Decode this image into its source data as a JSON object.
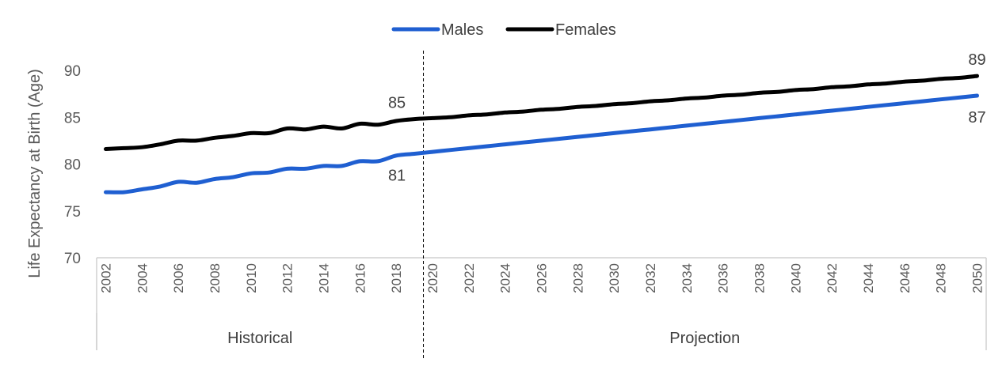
{
  "chart_data": {
    "type": "line",
    "ylabel": "Life Expectancy at Birth (Age)",
    "xlabel": "",
    "ylim": [
      70,
      90
    ],
    "yticks": [
      70,
      75,
      80,
      85,
      90
    ],
    "legend_position": "top",
    "grid": false,
    "x": [
      2002,
      2003,
      2004,
      2005,
      2006,
      2007,
      2008,
      2009,
      2010,
      2011,
      2012,
      2013,
      2014,
      2015,
      2016,
      2017,
      2018,
      2019,
      2020,
      2021,
      2022,
      2023,
      2024,
      2025,
      2026,
      2027,
      2028,
      2029,
      2030,
      2031,
      2032,
      2033,
      2034,
      2035,
      2036,
      2037,
      2038,
      2039,
      2040,
      2041,
      2042,
      2043,
      2044,
      2045,
      2046,
      2047,
      2048,
      2049,
      2050
    ],
    "x_tick_labels": [
      "2002",
      "2004",
      "2006",
      "2008",
      "2010",
      "2012",
      "2014",
      "2016",
      "2018",
      "2020",
      "2022",
      "2024",
      "2026",
      "2028",
      "2030",
      "2032",
      "2034",
      "2036",
      "2038",
      "2040",
      "2042",
      "2044",
      "2046",
      "2048",
      "2050"
    ],
    "series": [
      {
        "name": "Males",
        "color": "#1f5fd1",
        "values": [
          77.0,
          77.0,
          77.3,
          77.6,
          78.1,
          78.0,
          78.4,
          78.6,
          79.0,
          79.1,
          79.5,
          79.5,
          79.8,
          79.8,
          80.3,
          80.3,
          80.9,
          81.1,
          81.3,
          81.5,
          81.7,
          81.9,
          82.1,
          82.3,
          82.5,
          82.7,
          82.9,
          83.1,
          83.3,
          83.5,
          83.7,
          83.9,
          84.1,
          84.3,
          84.5,
          84.7,
          84.9,
          85.1,
          85.3,
          85.5,
          85.7,
          85.9,
          86.1,
          86.3,
          86.5,
          86.7,
          86.9,
          87.1,
          87.3
        ]
      },
      {
        "name": "Females",
        "color": "#000000",
        "values": [
          81.6,
          81.7,
          81.8,
          82.1,
          82.5,
          82.5,
          82.8,
          83.0,
          83.3,
          83.3,
          83.8,
          83.7,
          84.0,
          83.8,
          84.3,
          84.2,
          84.6,
          84.8,
          84.9,
          85.0,
          85.2,
          85.3,
          85.5,
          85.6,
          85.8,
          85.9,
          86.1,
          86.2,
          86.4,
          86.5,
          86.7,
          86.8,
          87.0,
          87.1,
          87.3,
          87.4,
          87.6,
          87.7,
          87.9,
          88.0,
          88.2,
          88.3,
          88.5,
          88.6,
          88.8,
          88.9,
          89.1,
          89.2,
          89.4
        ]
      }
    ],
    "data_labels": [
      {
        "series": "Females",
        "x": 2019,
        "text": "85"
      },
      {
        "series": "Males",
        "x": 2019,
        "text": "81"
      },
      {
        "series": "Females",
        "x": 2050,
        "text": "89"
      },
      {
        "series": "Males",
        "x": 2050,
        "text": "87"
      }
    ],
    "groups": [
      {
        "label": "Historical",
        "start": 2002,
        "end": 2019
      },
      {
        "label": "Projection",
        "start": 2020,
        "end": 2050
      }
    ],
    "divider_between": [
      2019,
      2020
    ]
  }
}
